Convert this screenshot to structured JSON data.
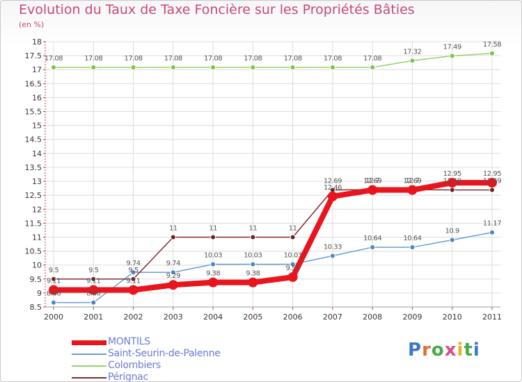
{
  "chart_data": {
    "type": "line",
    "title": "Evolution du Taux de Taxe Foncière sur les Propriétés Bâties",
    "ylabel": "(en %)",
    "xlabel": "",
    "categories": [
      "2000",
      "2001",
      "2002",
      "2003",
      "2004",
      "2005",
      "2006",
      "2007",
      "2008",
      "2009",
      "2010",
      "2011"
    ],
    "ylim": [
      8.5,
      18
    ],
    "yticks": [
      "8.5",
      "9",
      "9.5",
      "10",
      "10.5",
      "11",
      "11.5",
      "12",
      "12.5",
      "13",
      "13.5",
      "14",
      "14.5",
      "15",
      "15.5",
      "16",
      "16.5",
      "17",
      "17.5",
      "18"
    ],
    "series": [
      {
        "name": "MONTILS",
        "color": "#e8141e",
        "values": [
          9.11,
          9.11,
          9.11,
          9.29,
          9.38,
          9.38,
          9.57,
          12.46,
          12.69,
          12.69,
          12.95,
          12.95
        ],
        "labels": [
          "9.11",
          "9.11",
          "9.11",
          "9.29",
          "9.38",
          "9.38",
          "9.57",
          "12.46",
          "12.69",
          "12.69",
          "12.95",
          "12.95"
        ]
      },
      {
        "name": "Saint-Seurin-de-Palenne",
        "color": "#6a9bd0",
        "values": [
          8.66,
          8.66,
          9.74,
          9.74,
          10.03,
          10.03,
          10.03,
          10.33,
          10.64,
          10.64,
          10.9,
          11.17
        ],
        "labels": [
          "8.66",
          "8.66",
          "9.74",
          "9.74",
          "10.03",
          "10.03",
          "10.03",
          "10.33",
          "10.64",
          "10.64",
          "10.9",
          "11.17"
        ]
      },
      {
        "name": "Colombiers",
        "color": "#93d36a",
        "values": [
          17.08,
          17.08,
          17.08,
          17.08,
          17.08,
          17.08,
          17.08,
          17.08,
          17.08,
          17.32,
          17.49,
          17.58
        ],
        "labels": [
          "17.08",
          "17.08",
          "17.08",
          "17.08",
          "17.08",
          "17.08",
          "17.08",
          "17.08",
          "17.08",
          "17.32",
          "17.49",
          "17.58"
        ]
      },
      {
        "name": "Pérignac",
        "color": "#7e2c2c",
        "values": [
          9.5,
          9.5,
          9.5,
          11,
          11,
          11,
          11,
          12.69,
          12.7,
          12.7,
          12.69,
          12.69
        ],
        "labels": [
          "9.5",
          "9.5",
          "9.5",
          "11",
          "11",
          "11",
          "11",
          "12.69",
          "12.7",
          "12.7",
          "12.69",
          "12.69"
        ]
      }
    ]
  },
  "logo_text": [
    "P",
    "r",
    "o",
    "x",
    "i",
    "t",
    "i"
  ]
}
